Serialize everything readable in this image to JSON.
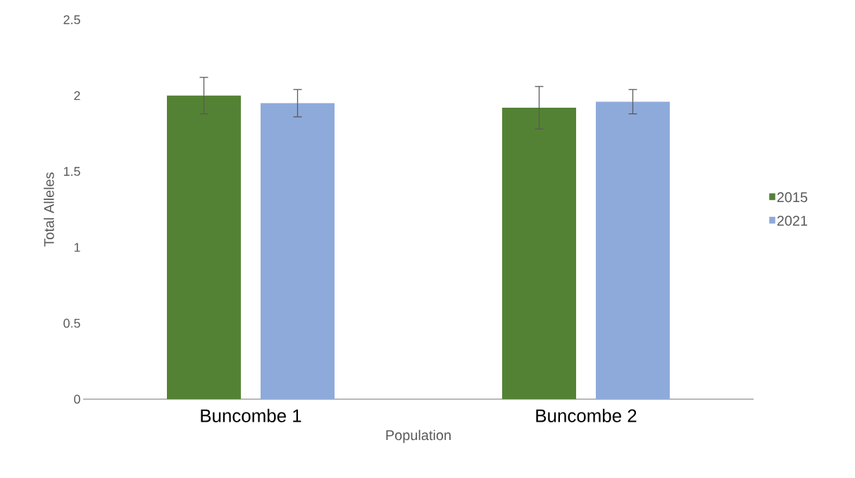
{
  "chart_data": {
    "type": "bar",
    "xlabel": "Population",
    "ylabel": "Total Alleles",
    "categories": [
      "Buncombe 1",
      "Buncombe 2"
    ],
    "series": [
      {
        "name": "2015",
        "color": "#548235",
        "values": [
          2.0,
          1.92
        ],
        "errors": [
          0.12,
          0.14
        ]
      },
      {
        "name": "2021",
        "color": "#8eaadb",
        "values": [
          1.95,
          1.96
        ],
        "errors": [
          0.09,
          0.08
        ]
      }
    ],
    "ylim": [
      0,
      2.5
    ],
    "yticks": [
      0,
      0.5,
      1,
      1.5,
      2,
      2.5
    ],
    "legend": "right"
  }
}
